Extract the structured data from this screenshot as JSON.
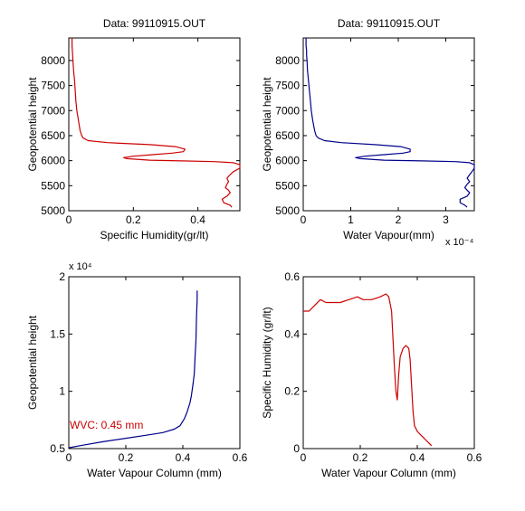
{
  "chart_data": [
    {
      "type": "line",
      "title": "Data: 99110915.OUT",
      "xlabel": "Specific Humidity(gr/lt)",
      "ylabel": "Geopotential height",
      "xlim": [
        0,
        0.53
      ],
      "ylim": [
        5000,
        8450
      ],
      "xticks": [
        0,
        0.2,
        0.4
      ],
      "xtick_labels": [
        "0",
        "0.2",
        "0.4"
      ],
      "yticks": [
        5000,
        5500,
        6000,
        6500,
        7000,
        7500,
        8000
      ],
      "ytick_labels": [
        "5000",
        "5500",
        "6000",
        "6500",
        "7000",
        "7500",
        "8000"
      ],
      "x_exponent": "",
      "y_exponent": "",
      "annotation": "",
      "series": [
        {
          "color": "#cc0000",
          "x": [
            0.505,
            0.5,
            0.48,
            0.475,
            0.49,
            0.5,
            0.495,
            0.485,
            0.49,
            0.495,
            0.49,
            0.5,
            0.51,
            0.53,
            0.53,
            0.51,
            0.45,
            0.35,
            0.25,
            0.18,
            0.17,
            0.2,
            0.26,
            0.32,
            0.355,
            0.36,
            0.33,
            0.25,
            0.12,
            0.06,
            0.045,
            0.04,
            0.035,
            0.03,
            0.025,
            0.022,
            0.02,
            0.018,
            0.015,
            0.013,
            0.012,
            0.011,
            0.01,
            0.01
          ],
          "y": [
            5070,
            5110,
            5160,
            5230,
            5290,
            5360,
            5410,
            5460,
            5530,
            5580,
            5650,
            5720,
            5780,
            5850,
            5920,
            5960,
            5980,
            5995,
            6010,
            6040,
            6060,
            6090,
            6120,
            6150,
            6180,
            6230,
            6280,
            6320,
            6360,
            6400,
            6450,
            6500,
            6600,
            6800,
            7000,
            7200,
            7400,
            7600,
            7800,
            8000,
            8100,
            8200,
            8300,
            8450
          ]
        }
      ]
    },
    {
      "type": "line",
      "title": "Data: 99110915.OUT",
      "xlabel": "Water Vapour(mm)",
      "ylabel": "Geopotential height",
      "xlim": [
        0,
        3.6
      ],
      "ylim": [
        5000,
        8450
      ],
      "xticks": [
        0,
        1,
        2,
        3
      ],
      "xtick_labels": [
        "0",
        "1",
        "2",
        "3"
      ],
      "yticks": [
        5000,
        5500,
        6000,
        6500,
        7000,
        7500,
        8000
      ],
      "ytick_labels": [
        "5000",
        "5500",
        "6000",
        "6500",
        "7000",
        "7500",
        "8000"
      ],
      "x_exponent": "x 10⁻⁴",
      "y_exponent": "",
      "annotation": "",
      "series": [
        {
          "color": "#00008b",
          "x": [
            3.45,
            3.4,
            3.3,
            3.3,
            3.45,
            3.5,
            3.45,
            3.4,
            3.45,
            3.5,
            3.45,
            3.5,
            3.55,
            3.6,
            3.6,
            3.5,
            3.2,
            2.5,
            1.7,
            1.2,
            1.1,
            1.3,
            1.7,
            2.1,
            2.25,
            2.25,
            2.05,
            1.5,
            0.8,
            0.45,
            0.32,
            0.27,
            0.24,
            0.2,
            0.17,
            0.15,
            0.13,
            0.11,
            0.09,
            0.08,
            0.07,
            0.07,
            0.06,
            0.06
          ],
          "y": [
            5070,
            5110,
            5160,
            5230,
            5290,
            5360,
            5410,
            5460,
            5530,
            5580,
            5650,
            5720,
            5780,
            5850,
            5920,
            5960,
            5980,
            5995,
            6010,
            6040,
            6060,
            6090,
            6120,
            6150,
            6180,
            6230,
            6280,
            6320,
            6360,
            6400,
            6450,
            6500,
            6600,
            6800,
            7000,
            7200,
            7400,
            7600,
            7800,
            8000,
            8100,
            8200,
            8300,
            8450
          ]
        }
      ]
    },
    {
      "type": "line",
      "title": "",
      "xlabel": "Water Vapour Column (mm)",
      "ylabel": "Geopotential height",
      "xlim": [
        0,
        0.6
      ],
      "ylim": [
        5000,
        20000
      ],
      "xticks": [
        0,
        0.2,
        0.4,
        0.6
      ],
      "xtick_labels": [
        "0",
        "0.2",
        "0.4",
        "0.6"
      ],
      "yticks": [
        5000,
        10000,
        15000,
        20000
      ],
      "ytick_labels": [
        "0.5",
        "1",
        "1.5",
        "2"
      ],
      "x_exponent": "",
      "y_exponent": "x 10⁴",
      "annotation": "WVC: 0.45 mm",
      "annotation_color": "#cc0000",
      "series": [
        {
          "color": "#00008b",
          "x": [
            0.0,
            0.05,
            0.12,
            0.2,
            0.28,
            0.33,
            0.37,
            0.39,
            0.405,
            0.415,
            0.425,
            0.43,
            0.435,
            0.44,
            0.443,
            0.446,
            0.448,
            0.45,
            0.45
          ],
          "y": [
            5070,
            5300,
            5600,
            5900,
            6200,
            6400,
            6700,
            7000,
            7600,
            8200,
            9000,
            9600,
            10500,
            11500,
            13000,
            14500,
            16500,
            18000,
            18800
          ]
        }
      ]
    },
    {
      "type": "line",
      "title": "",
      "xlabel": "Water Vapour Column (mm)",
      "ylabel": "Specific Humidity (gr/lt)",
      "xlim": [
        0,
        0.6
      ],
      "ylim": [
        0,
        0.6
      ],
      "xticks": [
        0,
        0.2,
        0.4,
        0.6
      ],
      "xtick_labels": [
        "0",
        "0.2",
        "0.4",
        "0.6"
      ],
      "yticks": [
        0,
        0.2,
        0.4,
        0.6
      ],
      "ytick_labels": [
        "0",
        "0.2",
        "0.4",
        "0.6"
      ],
      "x_exponent": "",
      "y_exponent": "",
      "annotation": "",
      "series": [
        {
          "color": "#cc0000",
          "x": [
            0.0,
            0.02,
            0.04,
            0.06,
            0.08,
            0.1,
            0.13,
            0.16,
            0.19,
            0.21,
            0.24,
            0.27,
            0.29,
            0.3,
            0.31,
            0.315,
            0.32,
            0.325,
            0.33,
            0.335,
            0.34,
            0.35,
            0.36,
            0.37,
            0.375,
            0.38,
            0.385,
            0.39,
            0.4,
            0.41,
            0.42,
            0.43,
            0.44,
            0.45
          ],
          "y": [
            0.48,
            0.48,
            0.5,
            0.52,
            0.51,
            0.51,
            0.51,
            0.52,
            0.53,
            0.52,
            0.52,
            0.53,
            0.54,
            0.53,
            0.48,
            0.38,
            0.28,
            0.2,
            0.17,
            0.26,
            0.32,
            0.35,
            0.36,
            0.35,
            0.31,
            0.22,
            0.13,
            0.08,
            0.06,
            0.05,
            0.04,
            0.03,
            0.02,
            0.01
          ]
        }
      ]
    }
  ]
}
